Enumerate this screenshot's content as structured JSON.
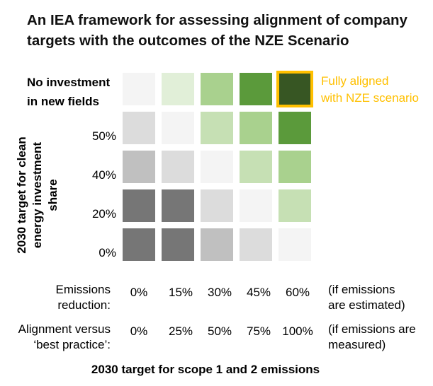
{
  "title_line1": "An IEA framework for assessing alignment of company",
  "title_line2": "targets with the outcomes of the NZE Scenario",
  "top_row_label_line1": "No investment",
  "top_row_label_line2": "in new fields",
  "aligned_note_line1": "Fully aligned",
  "aligned_note_line2": "with NZE scenario",
  "y_axis_title_line1": "2030 target for clean",
  "y_axis_title_line2": "energy investment share",
  "row_labels": [
    "50%",
    "40%",
    "20%",
    "0%"
  ],
  "emissions_label_line1": "Emissions",
  "emissions_label_line2": "reduction:",
  "emissions_values": [
    "0%",
    "15%",
    "30%",
    "45%",
    "60%"
  ],
  "emissions_note_line1": "(if emissions",
  "emissions_note_line2": "are estimated)",
  "alignment_label_line1": "Alignment versus",
  "alignment_label_line2": "‘best practice’:",
  "alignment_values": [
    "0%",
    "25%",
    "50%",
    "75%",
    "100%"
  ],
  "alignment_note_line1": "(if emissions are",
  "alignment_note_line2": "measured)",
  "x_axis_title": "2030 target for scope 1 and 2 emissions",
  "colors": {
    "dark_gray": "#767676",
    "mid_gray": "#c0c0c0",
    "light_gray": "#dcdcdc",
    "very_light": "#f4f4f4",
    "pale_green": "#e1efd8",
    "light_green": "#c6e0b4",
    "mid_green": "#a9d18e",
    "green": "#5b9a3b",
    "dark_green": "#375623",
    "highlight": "#ffc000"
  },
  "grid": [
    [
      "very_light",
      "pale_green",
      "mid_green",
      "green",
      "dark_green"
    ],
    [
      "light_gray",
      "very_light",
      "light_green",
      "mid_green",
      "green"
    ],
    [
      "mid_gray",
      "light_gray",
      "very_light",
      "light_green",
      "mid_green"
    ],
    [
      "dark_gray",
      "dark_gray",
      "light_gray",
      "very_light",
      "light_green"
    ],
    [
      "dark_gray",
      "dark_gray",
      "mid_gray",
      "light_gray",
      "very_light"
    ]
  ]
}
